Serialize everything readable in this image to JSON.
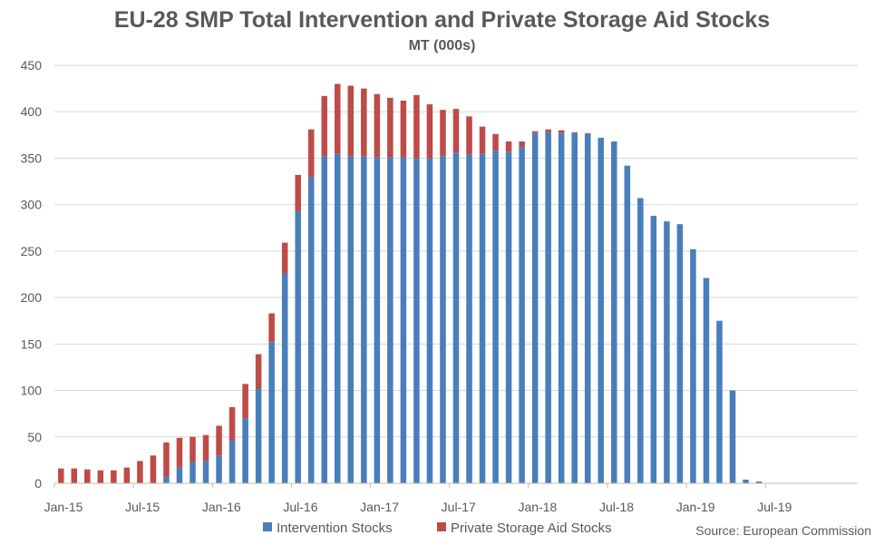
{
  "chart_data": {
    "type": "bar",
    "title": "EU-28 SMP Total Intervention and Private Storage Aid Stocks",
    "subtitle": "MT (000s)",
    "ylim": [
      0,
      450
    ],
    "yticks": [
      0,
      50,
      100,
      150,
      200,
      250,
      300,
      350,
      400,
      450
    ],
    "x_tick_labels": [
      "Jan-15",
      "Jul-15",
      "Jan-16",
      "Jul-16",
      "Jan-17",
      "Jul-17",
      "Jan-18",
      "Jul-18",
      "Jan-19",
      "Jul-19"
    ],
    "stacked": true,
    "grid": true,
    "legend_position": "bottom",
    "series": [
      {
        "name": "Intervention Stocks",
        "color": "#4A7EBB",
        "values": [
          0,
          0,
          0,
          0,
          0,
          0,
          0,
          0,
          7,
          17,
          23,
          24,
          30,
          46,
          70,
          102,
          152,
          226,
          293,
          330,
          352,
          355,
          352,
          352,
          351,
          351,
          351,
          350,
          350,
          352,
          356,
          354,
          355,
          358,
          357,
          362,
          377,
          378,
          377,
          377,
          376,
          372,
          368,
          342,
          307,
          288,
          282,
          279,
          252,
          221,
          175,
          100,
          4,
          2,
          0,
          0,
          0,
          0,
          0,
          0,
          0
        ]
      },
      {
        "name": "Private Storage Aid Stocks",
        "color": "#BE4B48",
        "values": [
          16,
          16,
          15,
          14,
          14,
          17,
          24,
          30,
          37,
          32,
          27,
          28,
          32,
          36,
          37,
          37,
          31,
          33,
          39,
          51,
          65,
          75,
          76,
          73,
          68,
          64,
          61,
          68,
          58,
          50,
          47,
          41,
          29,
          18,
          11,
          6,
          2,
          3,
          3,
          1,
          1,
          0,
          0,
          0,
          0,
          0,
          0,
          0,
          0,
          0,
          0,
          0,
          0,
          0,
          0,
          0,
          0,
          0,
          0,
          0,
          0
        ]
      }
    ]
  },
  "source": "Source: European Commission"
}
